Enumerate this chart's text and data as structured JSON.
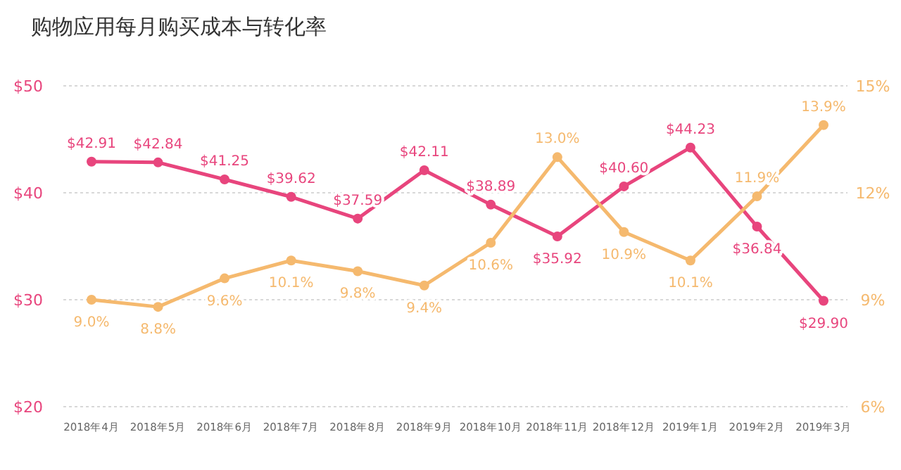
{
  "chart_data": {
    "type": "line",
    "title": "购物应用每月购买成本与转化率",
    "categories": [
      "2018年4月",
      "2018年5月",
      "2018年6月",
      "2018年7月",
      "2018年8月",
      "2018年9月",
      "2018年10月",
      "2018年11月",
      "2018年12月",
      "2019年1月",
      "2019年2月",
      "2019年3月"
    ],
    "series": [
      {
        "color": "#e8457d",
        "axis": "y",
        "values": [
          42.91,
          42.84,
          41.25,
          39.62,
          37.59,
          42.11,
          38.89,
          35.92,
          40.6,
          44.23,
          36.84,
          29.9
        ],
        "value_labels": [
          "$42.91",
          "$42.84",
          "$41.25",
          "$39.62",
          "$37.59",
          "$42.11",
          "$38.89",
          "$35.92",
          "$40.60",
          "$44.23",
          "$36.84",
          "$29.90"
        ]
      },
      {
        "color": "#f5b96e",
        "axis": "y2",
        "values": [
          9.0,
          8.8,
          9.6,
          10.1,
          9.8,
          9.4,
          10.6,
          13.0,
          10.9,
          10.1,
          11.9,
          13.9
        ],
        "value_labels": [
          "9.0%",
          "8.8%",
          "9.6%",
          "10.1%",
          "9.8%",
          "9.4%",
          "10.6%",
          "13.0%",
          "10.9%",
          "10.1%",
          "11.9%",
          "13.9%"
        ]
      }
    ],
    "ylim": [
      20,
      50
    ],
    "yticks": [
      {
        "value": 20,
        "label": "$20"
      },
      {
        "value": 30,
        "label": "$30"
      },
      {
        "value": 40,
        "label": "$40"
      },
      {
        "value": 50,
        "label": "$50"
      }
    ],
    "y2lim": [
      6,
      15
    ],
    "y2ticks": [
      {
        "value": 6,
        "label": "6%"
      },
      {
        "value": 9,
        "label": "9%"
      },
      {
        "value": 12,
        "label": "12%"
      },
      {
        "value": 15,
        "label": "15%"
      }
    ],
    "grid": "y",
    "marker": "circle",
    "line_style": "solid"
  }
}
